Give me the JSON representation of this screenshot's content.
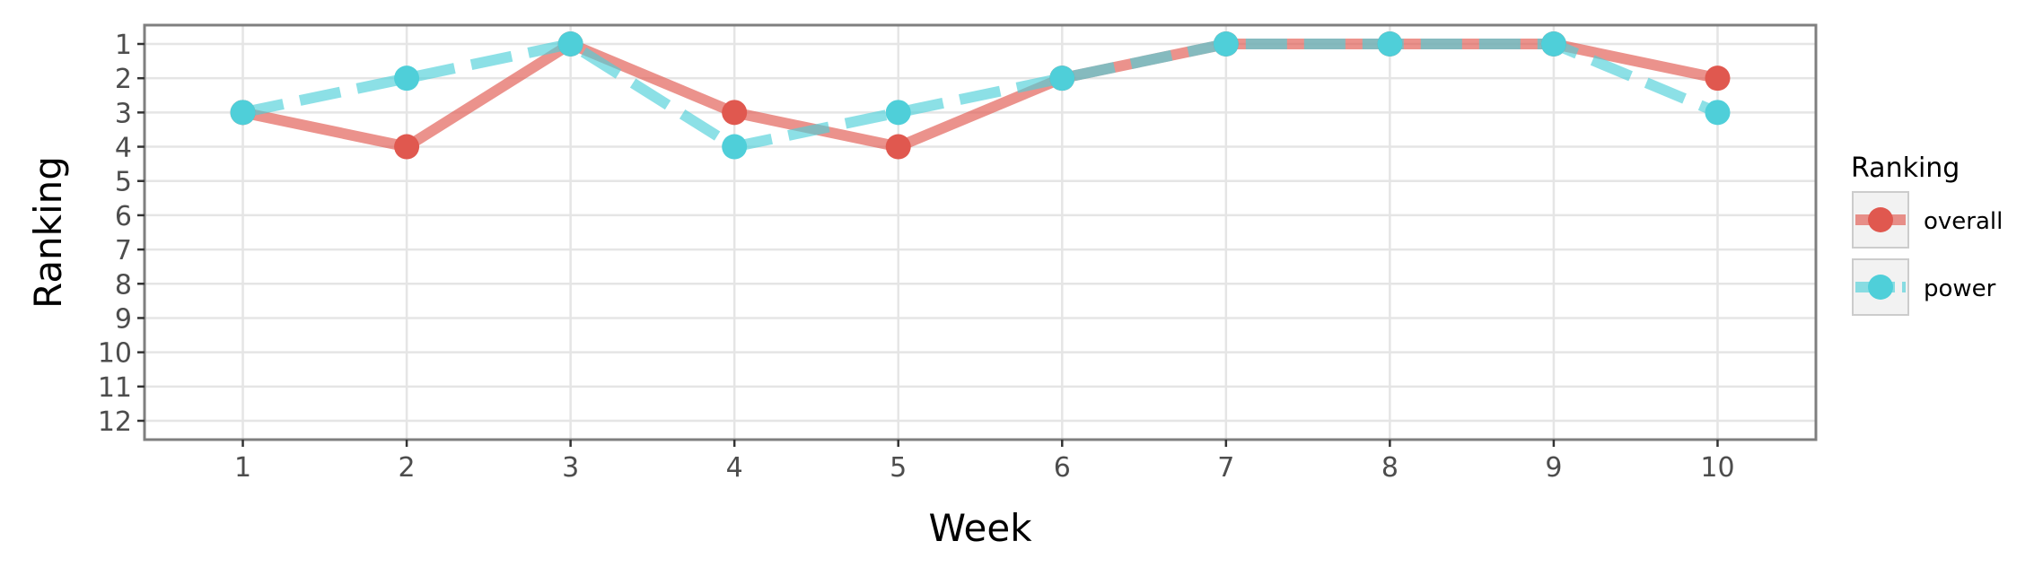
{
  "chart_data": {
    "type": "line",
    "xlabel": "Week",
    "ylabel": "Ranking",
    "x": [
      1,
      2,
      3,
      4,
      5,
      6,
      7,
      8,
      9,
      10
    ],
    "xlim": [
      0.4,
      10.6
    ],
    "ylim": [
      12.55,
      0.45
    ],
    "y_reversed": true,
    "y_ticks": [
      1,
      2,
      3,
      4,
      5,
      6,
      7,
      8,
      9,
      10,
      11,
      12
    ],
    "grid": true,
    "legend": {
      "title": "Ranking",
      "placement": "right"
    },
    "series": [
      {
        "name": "overall",
        "values": [
          3,
          4,
          1,
          3,
          4,
          2,
          1,
          1,
          1,
          2
        ],
        "color": "#e0584f",
        "line_style": "solid"
      },
      {
        "name": "power",
        "values": [
          3,
          2,
          1,
          4,
          3,
          2,
          1,
          1,
          1,
          3
        ],
        "color": "#4fcfd9",
        "line_style": "dashed"
      }
    ]
  }
}
